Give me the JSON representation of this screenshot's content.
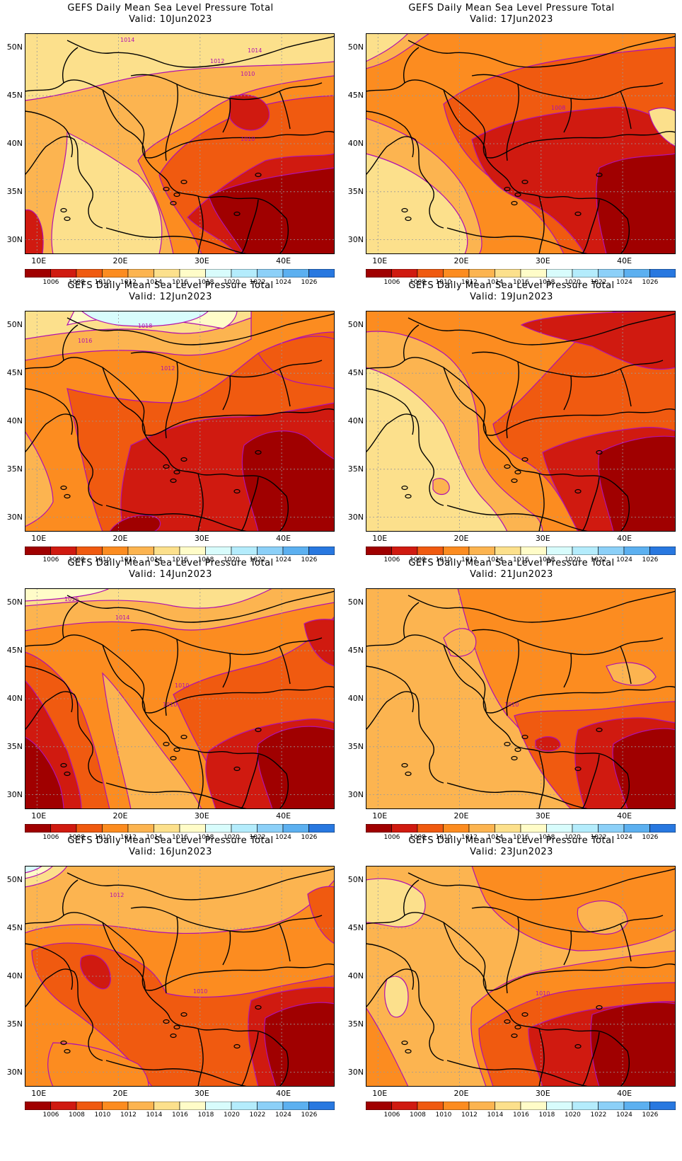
{
  "title": "GEFS Daily Mean Sea Level Pressure Total",
  "valid_prefix": "Valid:",
  "lat_labels": [
    "50N",
    "45N",
    "40N",
    "35N",
    "30N"
  ],
  "lon_labels": [
    "10E",
    "20E",
    "30E",
    "40E"
  ],
  "colorbar": {
    "labels": [
      "1006",
      "1008",
      "1010",
      "1012",
      "1014",
      "1016",
      "1018",
      "1020",
      "1022",
      "1024",
      "1026"
    ],
    "colors": [
      "#a00000",
      "#d01a10",
      "#f05a10",
      "#fc8c20",
      "#fcb450",
      "#fce08c",
      "#fffcc8",
      "#d8fcfc",
      "#b4ecfc",
      "#8cd0f8",
      "#5cb0f0",
      "#2878e0"
    ]
  },
  "panels": [
    {
      "id": "p1",
      "valid": "10Jun2023",
      "contour_labels": [
        "1014",
        "1014",
        "1012",
        "1010",
        "1010"
      ]
    },
    {
      "id": "p2",
      "valid": "17Jun2023",
      "contour_labels": [
        "1008"
      ]
    },
    {
      "id": "p3",
      "valid": "12Jun2023",
      "contour_labels": [
        "1018",
        "1016",
        "1012"
      ]
    },
    {
      "id": "p4",
      "valid": "19Jun2023",
      "contour_labels": []
    },
    {
      "id": "p5",
      "valid": "14Jun2023",
      "contour_labels": [
        "1016",
        "1014",
        "1010",
        "1010"
      ]
    },
    {
      "id": "p6",
      "valid": "21Jun2023",
      "contour_labels": [
        "1010"
      ]
    },
    {
      "id": "p7",
      "valid": "16Jun2023",
      "contour_labels": [
        "1012",
        "1010"
      ]
    },
    {
      "id": "p8",
      "valid": "23Jun2023",
      "contour_labels": [
        "1010"
      ]
    }
  ]
}
